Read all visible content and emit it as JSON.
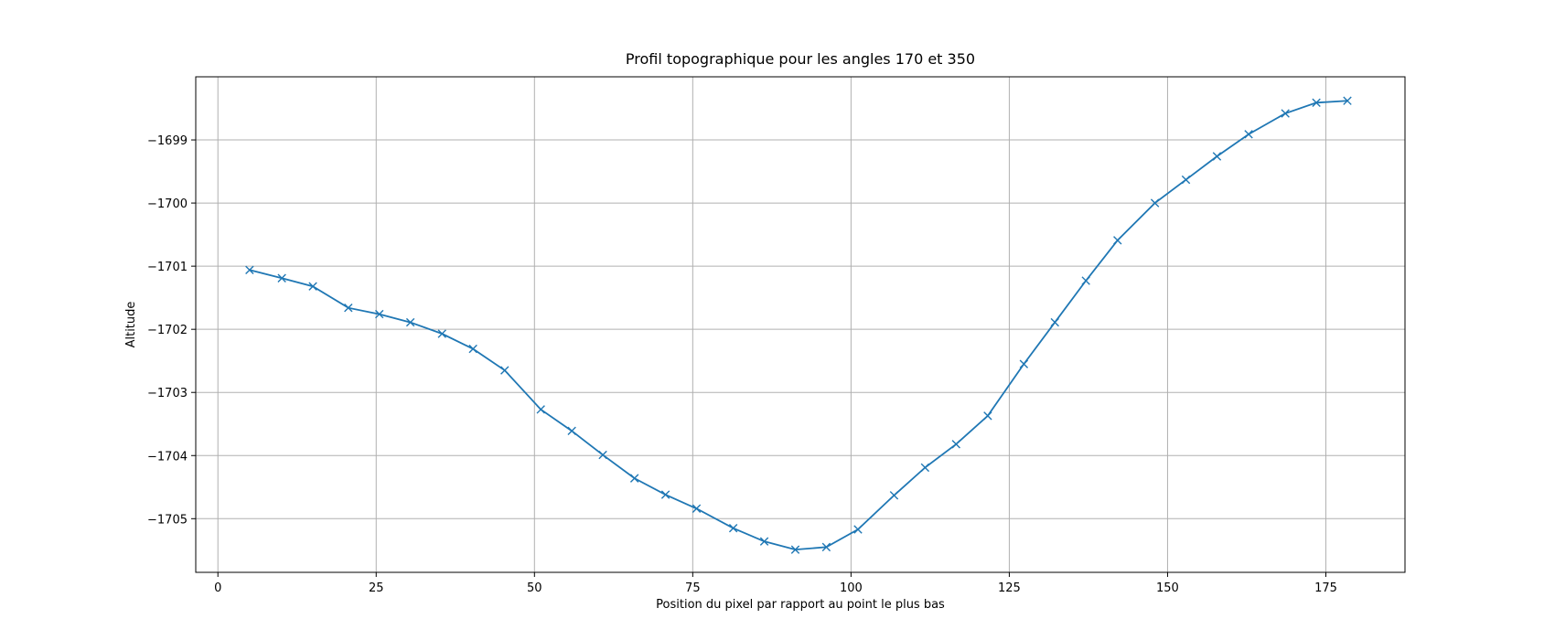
{
  "chart_data": {
    "type": "line",
    "title": "Profil topographique pour les angles 170 et 350",
    "xlabel": "Position du pixel par rapport au point le plus bas",
    "ylabel": "Altitude",
    "xlim": [
      -3.5,
      187.5
    ],
    "ylim": [
      -1705.85,
      -1698.0
    ],
    "xticks": [
      0,
      25,
      50,
      75,
      100,
      125,
      150,
      175
    ],
    "yticks": [
      -1705,
      -1704,
      -1703,
      -1702,
      -1701,
      -1700,
      -1699
    ],
    "ytick_labels": [
      "−1705",
      "−1704",
      "−1703",
      "−1702",
      "−1701",
      "−1700",
      "−1699"
    ],
    "grid": true,
    "series": [
      {
        "color": "#1f77b4",
        "marker": "x",
        "x": [
          5.0,
          10.1,
          15.0,
          20.6,
          25.5,
          30.4,
          35.4,
          40.3,
          45.3,
          51.0,
          55.9,
          60.8,
          65.8,
          70.7,
          75.6,
          81.4,
          86.3,
          91.2,
          96.1,
          101.1,
          106.8,
          111.7,
          116.6,
          121.6,
          127.3,
          132.2,
          137.1,
          142.1,
          148.0,
          152.9,
          157.8,
          162.8,
          168.6,
          173.5,
          178.4
        ],
        "y": [
          -1701.06,
          -1701.19,
          -1701.32,
          -1701.66,
          -1701.76,
          -1701.89,
          -1702.07,
          -1702.31,
          -1702.65,
          -1703.27,
          -1703.61,
          -1703.99,
          -1704.36,
          -1704.62,
          -1704.84,
          -1705.15,
          -1705.36,
          -1705.49,
          -1705.45,
          -1705.17,
          -1704.63,
          -1704.19,
          -1703.82,
          -1703.37,
          -1702.55,
          -1701.89,
          -1701.23,
          -1700.59,
          -1700.0,
          -1699.63,
          -1699.26,
          -1698.91,
          -1698.58,
          -1698.41,
          -1698.38
        ]
      }
    ]
  }
}
